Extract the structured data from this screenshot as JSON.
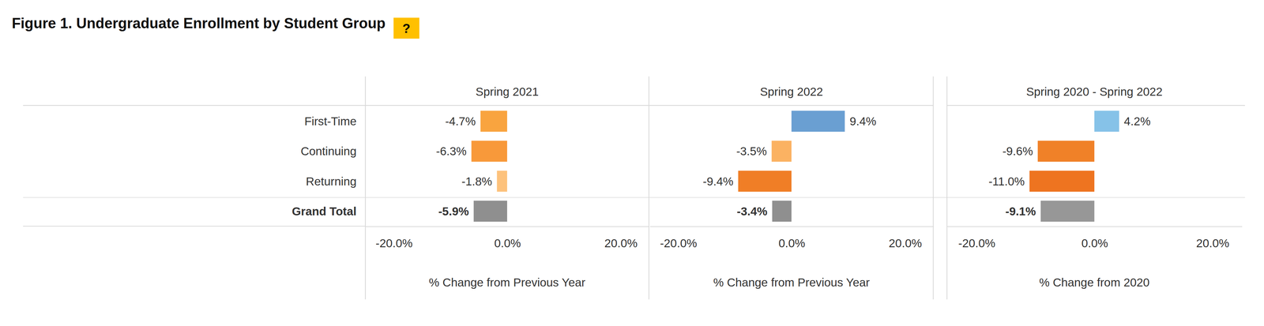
{
  "title": "Figure 1. Undergraduate Enrollment by Student Group",
  "help": "?",
  "chart_data": {
    "type": "bar",
    "orientation": "horizontal",
    "data_labels": true,
    "grid": false,
    "categories": [
      "First-Time",
      "Continuing",
      "Returning",
      "Grand Total"
    ],
    "xlim": [
      -25,
      25
    ],
    "xticks": [
      {
        "value": -20,
        "label": "-20.0%"
      },
      {
        "value": 0,
        "label": "0.0%"
      },
      {
        "value": 20,
        "label": "20.0%"
      }
    ],
    "series": [
      {
        "name": "Spring 2021",
        "xlabel": "% Change from Previous Year",
        "values": [
          -4.7,
          -6.3,
          -1.8,
          -5.9
        ],
        "value_labels": [
          "-4.7%",
          "-6.3%",
          "-1.8%",
          "-5.9%"
        ],
        "colors": [
          "#f9a43f",
          "#f8993a",
          "#fdc27c",
          "#8f8f8f"
        ]
      },
      {
        "name": "Spring 2022",
        "xlabel": "% Change from Previous Year",
        "values": [
          9.4,
          -3.5,
          -9.4,
          -3.4
        ],
        "value_labels": [
          "9.4%",
          "-3.5%",
          "-9.4%",
          "-3.4%"
        ],
        "colors": [
          "#6a9fd2",
          "#fbb262",
          "#f07e26",
          "#8f8f8f"
        ]
      },
      {
        "name": "Spring 2020 - Spring 2022",
        "xlabel": "% Change from 2020",
        "values": [
          4.2,
          -9.6,
          -11.0,
          -9.1
        ],
        "value_labels": [
          "4.2%",
          "-9.6%",
          "-11.0%",
          "-9.1%"
        ],
        "colors": [
          "#86c2e8",
          "#f08128",
          "#ee7420",
          "#979797"
        ]
      }
    ]
  }
}
